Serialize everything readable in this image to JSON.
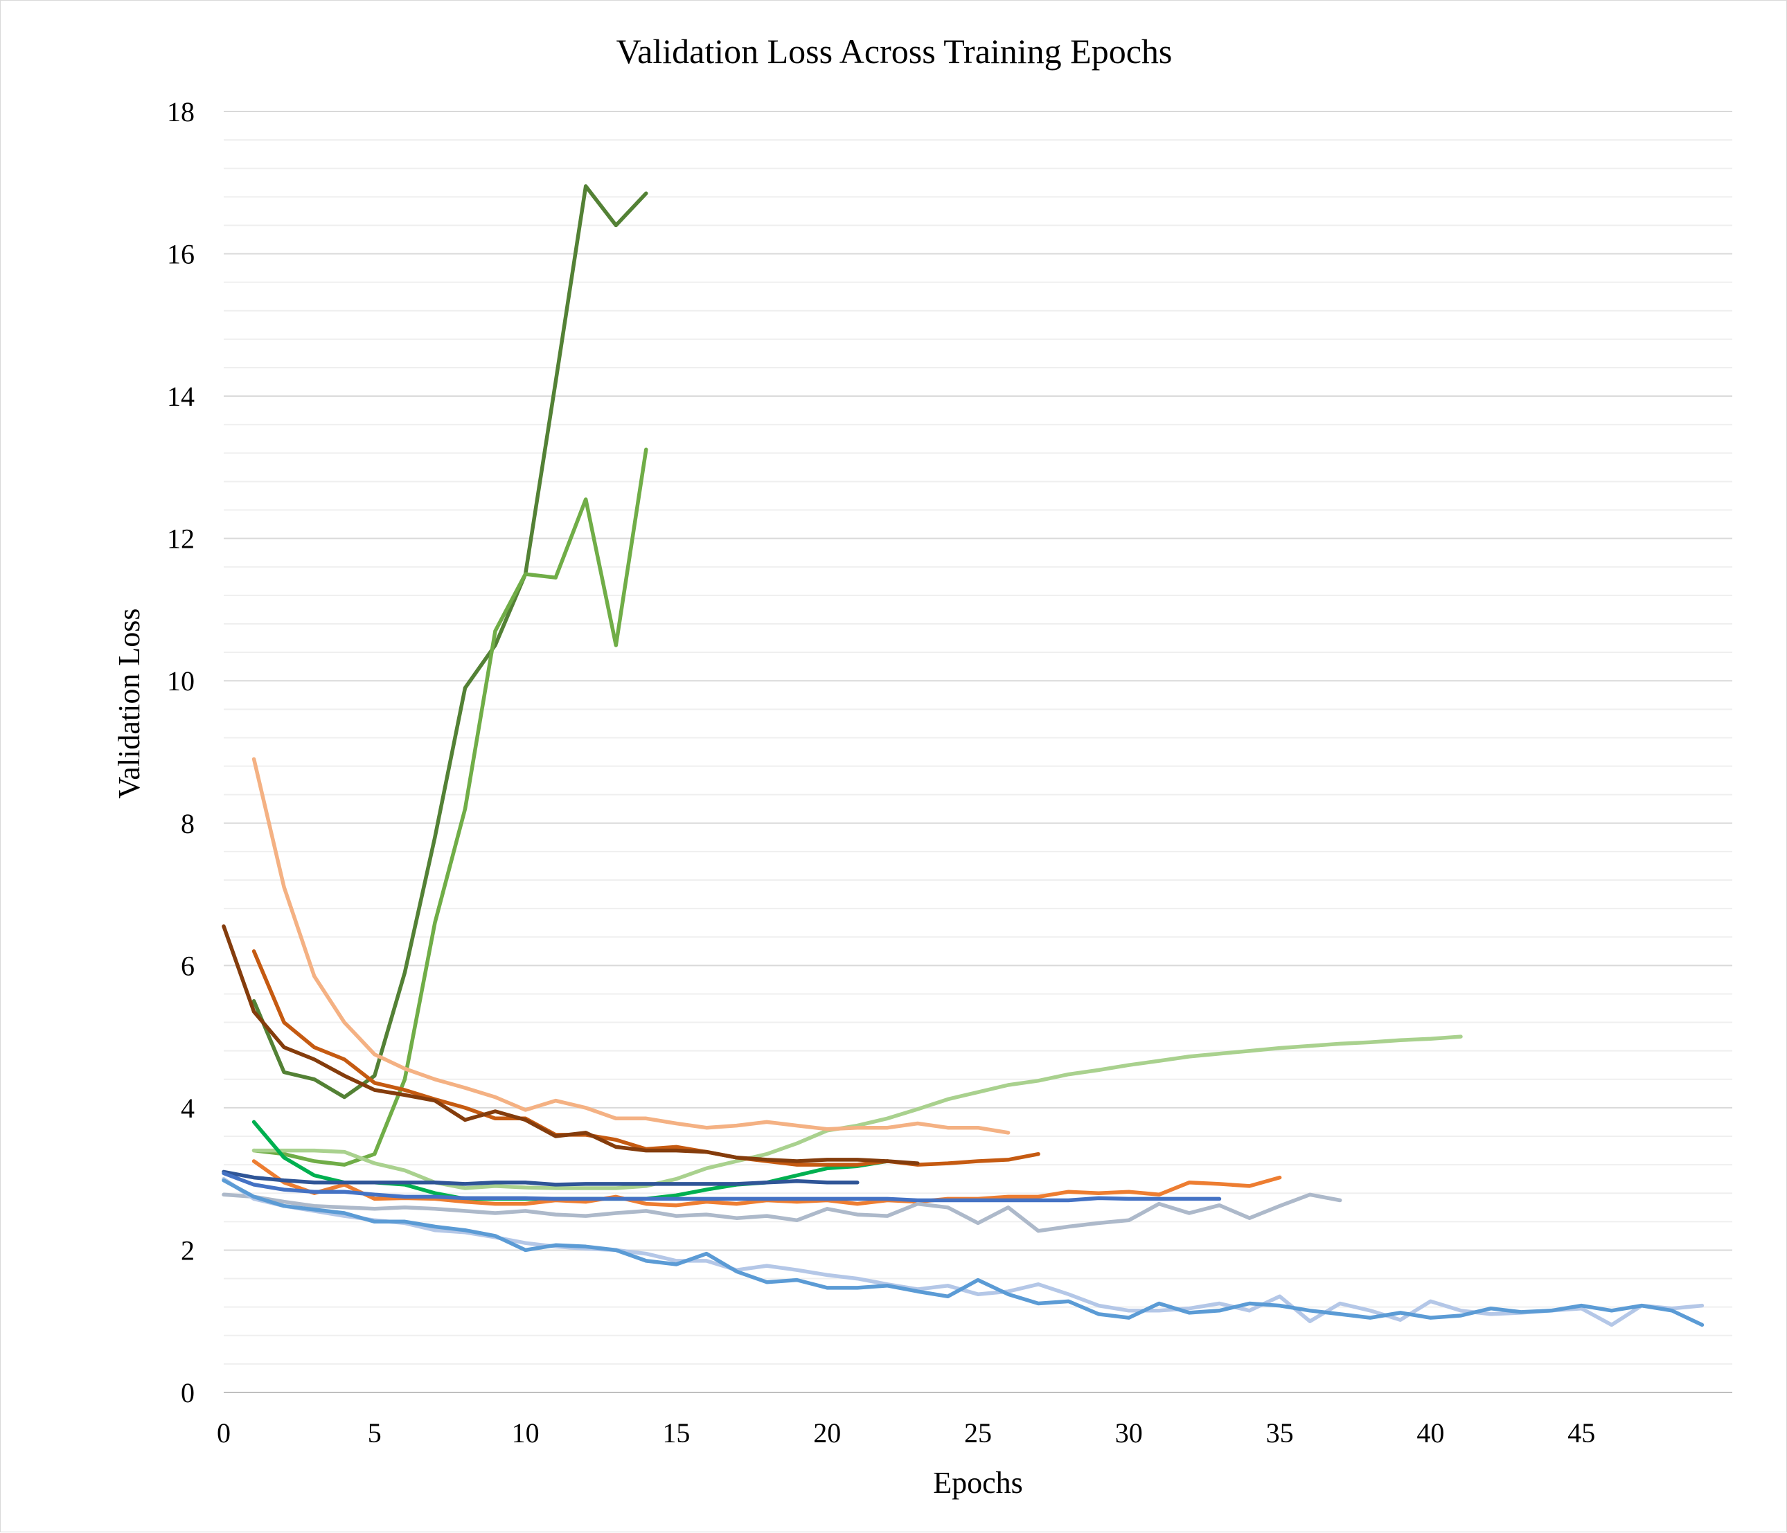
{
  "chart_data": {
    "type": "line",
    "title": "Validation Loss Across Training Epochs",
    "xlabel": "Epochs",
    "ylabel": "Validation Loss",
    "xlim": [
      0,
      50
    ],
    "ylim": [
      0,
      18
    ],
    "x_ticks": [
      0,
      5,
      10,
      15,
      20,
      25,
      30,
      35,
      40,
      45
    ],
    "y_ticks": [
      0,
      2,
      4,
      6,
      8,
      10,
      12,
      14,
      16,
      18
    ],
    "y_minor_step": 0.4,
    "grid": true,
    "legend": "none",
    "series": [
      {
        "color": "#538135",
        "x_start": 1,
        "values": [
          5.5,
          4.5,
          4.4,
          4.15,
          4.45,
          5.9,
          7.8,
          9.9,
          10.5,
          11.5,
          14.2,
          16.95,
          16.4,
          16.85
        ]
      },
      {
        "color": "#70ad47",
        "x_start": 1,
        "values": [
          3.4,
          3.35,
          3.25,
          3.2,
          3.35,
          4.4,
          6.6,
          8.2,
          10.7,
          11.5,
          11.45,
          12.55,
          10.5,
          13.25
        ]
      },
      {
        "color": "#a9d18e",
        "x_start": 1,
        "values": [
          3.4,
          3.4,
          3.4,
          3.38,
          3.22,
          3.12,
          2.95,
          2.87,
          2.9,
          2.88,
          2.87,
          2.87,
          2.87,
          2.9,
          3.0,
          3.15,
          3.25,
          3.35,
          3.5,
          3.68,
          3.75,
          3.85,
          3.98,
          4.12,
          4.22,
          4.32,
          4.38,
          4.47,
          4.53,
          4.6,
          4.66,
          4.72,
          4.76,
          4.8,
          4.84,
          4.87,
          4.9,
          4.92,
          4.95,
          4.97,
          5.0
        ]
      },
      {
        "color": "#00b050",
        "x_start": 1,
        "values": [
          3.8,
          3.3,
          3.05,
          2.95,
          2.95,
          2.92,
          2.8,
          2.72,
          2.72,
          2.72,
          2.72,
          2.72,
          2.72,
          2.72,
          2.77,
          2.85,
          2.92,
          2.95,
          3.05,
          3.15,
          3.18,
          3.25
        ]
      },
      {
        "color": "#f4b183",
        "x_start": 1,
        "values": [
          8.9,
          7.1,
          5.85,
          5.2,
          4.75,
          4.55,
          4.4,
          4.28,
          4.15,
          3.97,
          4.1,
          4.0,
          3.85,
          3.85,
          3.78,
          3.72,
          3.75,
          3.8,
          3.75,
          3.7,
          3.72,
          3.72,
          3.78,
          3.72,
          3.72,
          3.65
        ]
      },
      {
        "color": "#c55a11",
        "x_start": 1,
        "values": [
          6.2,
          5.2,
          4.85,
          4.68,
          4.35,
          4.25,
          4.12,
          4.0,
          3.85,
          3.85,
          3.62,
          3.62,
          3.55,
          3.42,
          3.45,
          3.38,
          3.3,
          3.25,
          3.2,
          3.2,
          3.2,
          3.25,
          3.2,
          3.22,
          3.25,
          3.27,
          3.35
        ]
      },
      {
        "color": "#843c0c",
        "x_start": 0,
        "values": [
          6.55,
          5.35,
          4.85,
          4.68,
          4.45,
          4.25,
          4.18,
          4.1,
          3.83,
          3.95,
          3.83,
          3.6,
          3.65,
          3.45,
          3.4,
          3.4,
          3.38,
          3.3,
          3.27,
          3.25,
          3.27,
          3.27,
          3.25,
          3.22
        ]
      },
      {
        "color": "#ed7d31",
        "x_start": 1,
        "values": [
          3.25,
          2.95,
          2.8,
          2.92,
          2.72,
          2.73,
          2.72,
          2.68,
          2.65,
          2.65,
          2.7,
          2.68,
          2.75,
          2.65,
          2.63,
          2.68,
          2.65,
          2.7,
          2.68,
          2.7,
          2.65,
          2.7,
          2.68,
          2.72,
          2.72,
          2.75,
          2.75,
          2.82,
          2.8,
          2.82,
          2.78,
          2.95,
          2.93,
          2.9,
          3.02
        ]
      },
      {
        "color": "#2f5597",
        "x_start": 0,
        "values": [
          3.1,
          3.02,
          2.98,
          2.95,
          2.95,
          2.95,
          2.95,
          2.95,
          2.93,
          2.95,
          2.95,
          2.92,
          2.93,
          2.93,
          2.93,
          2.93,
          2.93,
          2.93,
          2.95,
          2.97,
          2.95,
          2.95
        ]
      },
      {
        "color": "#4472c4",
        "x_start": 0,
        "values": [
          3.08,
          2.92,
          2.85,
          2.82,
          2.82,
          2.78,
          2.75,
          2.75,
          2.73,
          2.73,
          2.73,
          2.72,
          2.72,
          2.72,
          2.72,
          2.72,
          2.72,
          2.72,
          2.72,
          2.72,
          2.72,
          2.72,
          2.72,
          2.7,
          2.7,
          2.7,
          2.7,
          2.7,
          2.7,
          2.73,
          2.72,
          2.72,
          2.72,
          2.72
        ]
      },
      {
        "color": "#adb9ca",
        "x_start": 0,
        "values": [
          2.78,
          2.75,
          2.68,
          2.62,
          2.6,
          2.58,
          2.6,
          2.58,
          2.55,
          2.52,
          2.55,
          2.5,
          2.48,
          2.52,
          2.55,
          2.48,
          2.5,
          2.45,
          2.48,
          2.42,
          2.58,
          2.5,
          2.48,
          2.65,
          2.6,
          2.38,
          2.6,
          2.27,
          2.33,
          2.38,
          2.42,
          2.65,
          2.52,
          2.63,
          2.45,
          2.62,
          2.78,
          2.7
        ]
      },
      {
        "color": "#b4c7e7",
        "x_start": 0,
        "values": [
          3.0,
          2.72,
          2.62,
          2.55,
          2.48,
          2.42,
          2.38,
          2.28,
          2.25,
          2.18,
          2.1,
          2.05,
          2.02,
          2.0,
          1.95,
          1.85,
          1.85,
          1.72,
          1.78,
          1.72,
          1.65,
          1.6,
          1.52,
          1.45,
          1.5,
          1.38,
          1.42,
          1.52,
          1.38,
          1.22,
          1.15,
          1.15,
          1.18,
          1.25,
          1.15,
          1.35,
          1.0,
          1.25,
          1.15,
          1.02,
          1.28,
          1.15,
          1.1,
          1.12,
          1.15,
          1.18,
          0.95,
          1.22,
          1.18,
          1.22
        ]
      },
      {
        "color": "#5b9bd5",
        "x_start": 0,
        "values": [
          2.98,
          2.75,
          2.62,
          2.57,
          2.52,
          2.4,
          2.4,
          2.33,
          2.28,
          2.2,
          2.0,
          2.07,
          2.05,
          2.0,
          1.85,
          1.8,
          1.95,
          1.7,
          1.55,
          1.58,
          1.47,
          1.47,
          1.5,
          1.42,
          1.35,
          1.58,
          1.38,
          1.25,
          1.28,
          1.1,
          1.05,
          1.25,
          1.12,
          1.15,
          1.25,
          1.22,
          1.15,
          1.1,
          1.05,
          1.12,
          1.05,
          1.08,
          1.18,
          1.13,
          1.15,
          1.22,
          1.15,
          1.22,
          1.15,
          0.95
        ]
      }
    ]
  }
}
